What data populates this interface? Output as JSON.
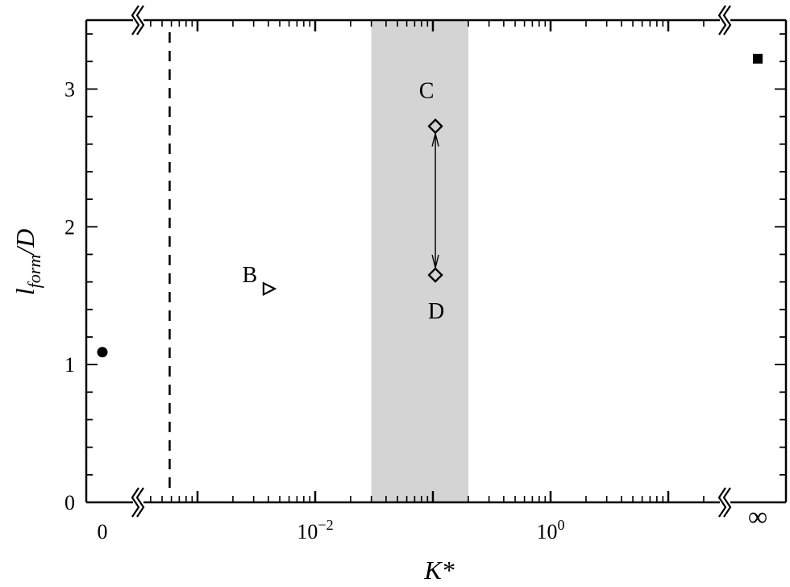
{
  "chart_data": {
    "type": "scatter",
    "xlabel": "K*",
    "ylabel_parts": {
      "base": "l",
      "sub": "form",
      "rest": "/D"
    },
    "xscale": "log with broken axis (0 at left, ∞ at right)",
    "xlim_log": [
      0.0004,
      20
    ],
    "ylim": [
      0,
      3.5
    ],
    "grid": false,
    "x_tick_labels": [
      {
        "label": "0",
        "value": "zero"
      },
      {
        "label": "10",
        "exp": "−2",
        "value": 0.01
      },
      {
        "label": "10",
        "exp": "0",
        "value": 1
      },
      {
        "label": "∞",
        "value": "infinity"
      }
    ],
    "x_major_ticks": [
      0.001,
      0.01,
      0.1,
      1,
      10
    ],
    "y_ticks": [
      0,
      1,
      2,
      3
    ],
    "y_tick_labels": [
      "0",
      "1",
      "2",
      "3"
    ],
    "shaded_band": {
      "x_from": 0.03,
      "x_to": 0.2,
      "color": "#d4d4d4"
    },
    "dashed_vline": {
      "x": 0.00058
    },
    "points": [
      {
        "x": "zero",
        "y": 1.09,
        "marker": "filled-circle",
        "label": ""
      },
      {
        "x": 0.004,
        "y": 1.55,
        "marker": "open-triangle-right",
        "label": "B"
      },
      {
        "x": 0.105,
        "y": 2.73,
        "marker": "open-diamond",
        "label": "C"
      },
      {
        "x": 0.105,
        "y": 1.65,
        "marker": "open-diamond",
        "label": "D"
      },
      {
        "x": "infinity",
        "y": 3.22,
        "marker": "filled-square",
        "label": ""
      }
    ],
    "annotations": [
      {
        "type": "double-arrow",
        "from": "C",
        "to": "D"
      }
    ]
  }
}
